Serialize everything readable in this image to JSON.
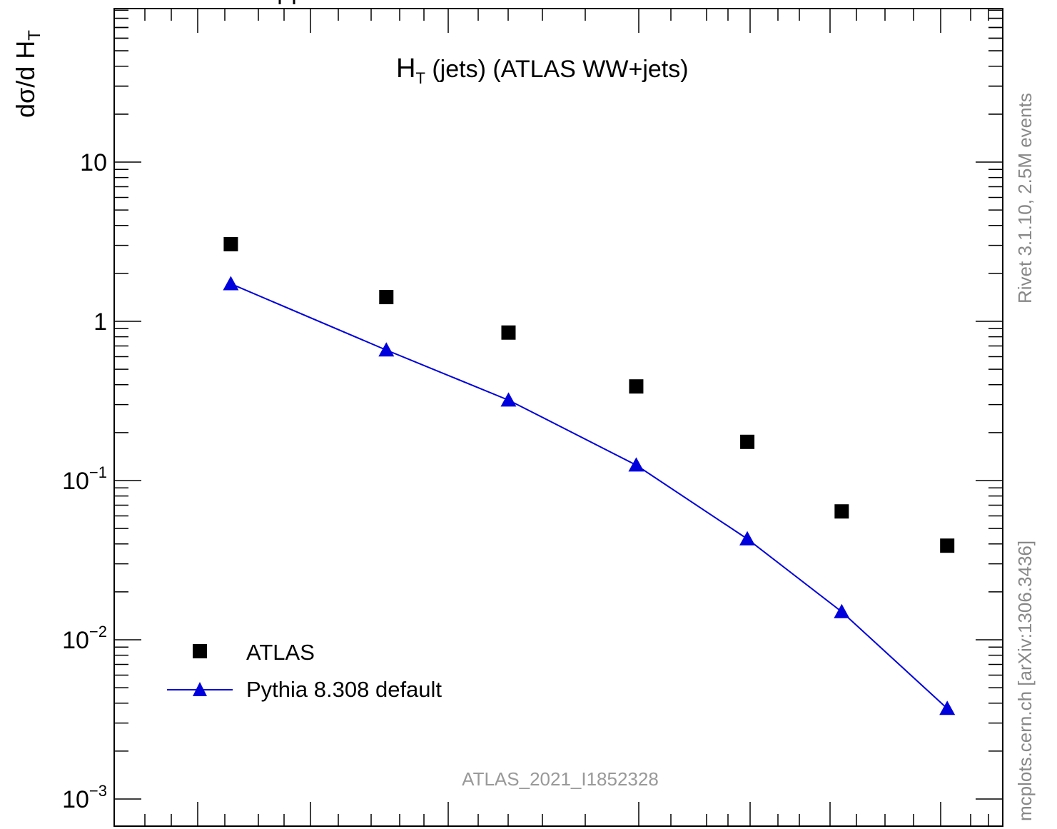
{
  "chart_data": {
    "type": "scatter",
    "title": "H_T (jets) (ATLAS WW+jets)",
    "title_main": "H",
    "title_sub": "T",
    "title_rest": " (jets) (ATLAS WW+jets)",
    "ylabel_main": "dσ/d H",
    "ylabel_sub": "T",
    "yscale": "log",
    "ylim": [
      0.0008,
      90
    ],
    "xlim": [
      0,
      8
    ],
    "yticks": [
      {
        "base": "10",
        "exp": ""
      },
      {
        "base": "1",
        "exp": ""
      },
      {
        "base": "10",
        "exp": "−1"
      },
      {
        "base": "10",
        "exp": "−2"
      },
      {
        "base": "10",
        "exp": "−3"
      }
    ],
    "series": [
      {
        "name": "ATLAS",
        "marker": "square",
        "color": "#000000",
        "x": [
          1.05,
          2.45,
          3.55,
          4.7,
          5.7,
          6.55,
          7.5
        ],
        "y": [
          3.05,
          1.42,
          0.85,
          0.39,
          0.175,
          0.064,
          0.039
        ]
      },
      {
        "name": "Pythia 8.308 default",
        "marker": "triangle",
        "color": "#0000dd",
        "x": [
          1.05,
          2.45,
          3.55,
          4.7,
          5.7,
          6.55,
          7.5
        ],
        "y": [
          1.72,
          0.66,
          0.32,
          0.125,
          0.043,
          0.015,
          0.0037
        ]
      }
    ],
    "legend_position": "bottom-left",
    "watermark": "ATLAS_2021_I1852328",
    "side_label_top": "Rivet 3.1.10,  2.5M events",
    "side_label_bottom": "mcplots.cern.ch [arXiv:1306.3436]"
  }
}
